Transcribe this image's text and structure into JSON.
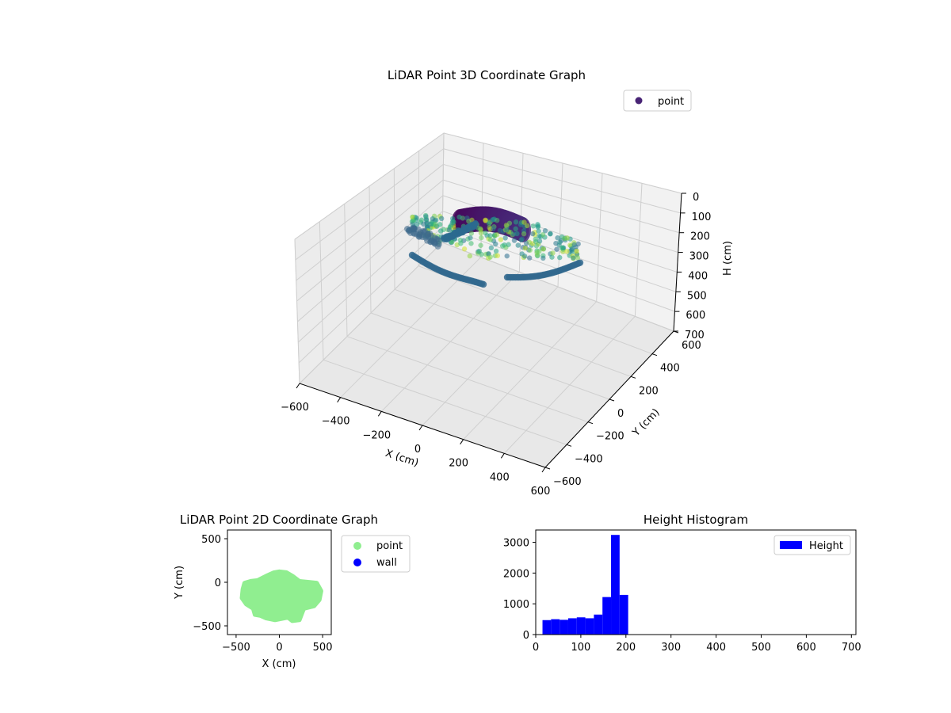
{
  "chart_data": [
    {
      "type": "scatter3d",
      "title": "LiDAR Point 3D Coordinate Graph",
      "xlabel": "X (cm)",
      "ylabel": "Y (cm)",
      "zlabel": "H (cm)",
      "xlim": [
        -600,
        600
      ],
      "ylim": [
        -600,
        600
      ],
      "zlim": [
        700,
        0
      ],
      "x_ticks": [
        "−600",
        "−400",
        "−200",
        "0",
        "200",
        "400",
        "600"
      ],
      "y_ticks": [
        "−600",
        "−400",
        "−200",
        "0",
        "200",
        "400",
        "600"
      ],
      "z_ticks": [
        "0",
        "100",
        "200",
        "300",
        "400",
        "500",
        "600",
        "700"
      ],
      "legend": [
        "point"
      ],
      "legend_position": "top-right",
      "colormap": "viridis",
      "grid": true
    },
    {
      "type": "scatter",
      "title": "LiDAR Point 2D Coordinate Graph",
      "xlabel": "X (cm)",
      "ylabel": "Y (cm)",
      "xlim": [
        -600,
        600
      ],
      "ylim": [
        -600,
        600
      ],
      "x_ticks": [
        "−500",
        "0",
        "500"
      ],
      "y_ticks": [
        "500",
        "0",
        "−500"
      ],
      "series": [
        {
          "name": "point",
          "color": "#90ee90",
          "outline": [
            [
              -420,
              -80
            ],
            [
              -400,
              -10
            ],
            [
              -330,
              10
            ],
            [
              -250,
              20
            ],
            [
              -150,
              70
            ],
            [
              -60,
              110
            ],
            [
              0,
              120
            ],
            [
              80,
              110
            ],
            [
              150,
              70
            ],
            [
              230,
              10
            ],
            [
              330,
              0
            ],
            [
              430,
              -10
            ],
            [
              480,
              -100
            ],
            [
              460,
              -200
            ],
            [
              400,
              -270
            ],
            [
              280,
              -300
            ],
            [
              230,
              -430
            ],
            [
              150,
              -440
            ],
            [
              100,
              -400
            ],
            [
              -50,
              -430
            ],
            [
              -150,
              -410
            ],
            [
              -220,
              -380
            ],
            [
              -280,
              -370
            ],
            [
              -300,
              -300
            ],
            [
              -380,
              -250
            ],
            [
              -430,
              -180
            ]
          ]
        },
        {
          "name": "wall",
          "color": "#0000ff",
          "outline": []
        }
      ],
      "legend": [
        "point",
        "wall"
      ],
      "legend_position": "outside-right",
      "grid": false
    },
    {
      "type": "histogram",
      "title": "Height Histogram",
      "xlim": [
        0,
        710
      ],
      "ylim": [
        0,
        3400
      ],
      "x_ticks": [
        "0",
        "100",
        "200",
        "300",
        "400",
        "500",
        "600",
        "700"
      ],
      "y_ticks": [
        "0",
        "1000",
        "2000",
        "3000"
      ],
      "bin_edges": [
        15,
        34,
        53,
        72,
        91,
        110,
        129,
        148,
        167,
        186,
        205
      ],
      "values": [
        470,
        500,
        480,
        530,
        560,
        530,
        650,
        1220,
        3240,
        1290
      ],
      "color": "#0000ff",
      "legend": [
        "Height"
      ],
      "legend_position": "top-right",
      "grid": false
    }
  ]
}
